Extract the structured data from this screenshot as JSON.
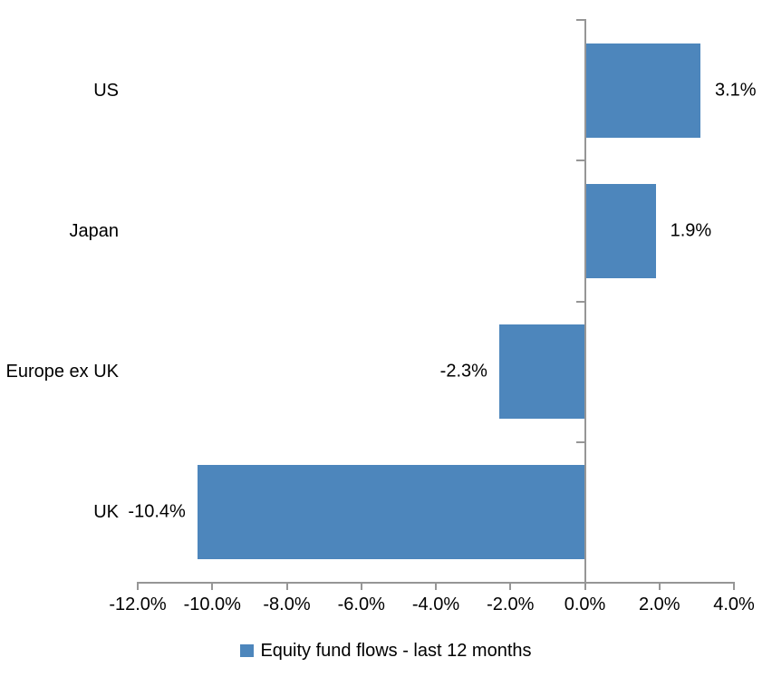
{
  "chart_data": {
    "type": "bar",
    "orientation": "horizontal",
    "title": "",
    "xlabel": "",
    "ylabel": "",
    "categories": [
      "US",
      "Japan",
      "Europe ex UK",
      "UK"
    ],
    "series": [
      {
        "name": "Equity fund flows - last 12 months",
        "values": [
          3.1,
          1.9,
          -2.3,
          -10.4
        ],
        "data_labels": [
          "3.1%",
          "1.9%",
          "-2.3%",
          "-10.4%"
        ]
      }
    ],
    "xlim": [
      -12,
      4
    ],
    "x_ticks": [
      -12,
      -10,
      -8,
      -6,
      -4,
      -2,
      0,
      2,
      4
    ],
    "x_tick_labels": [
      "-12.0%",
      "-10.0%",
      "-8.0%",
      "-6.0%",
      "-4.0%",
      "-2.0%",
      "0.0%",
      "2.0%",
      "4.0%"
    ],
    "grid": false,
    "legend_position": "bottom"
  },
  "legend": {
    "label": "Equity fund flows - last 12 months"
  },
  "colors": {
    "bar": "#4D86BC",
    "axis": "#969696",
    "text": "#000000",
    "background": "#FFFFFF"
  }
}
